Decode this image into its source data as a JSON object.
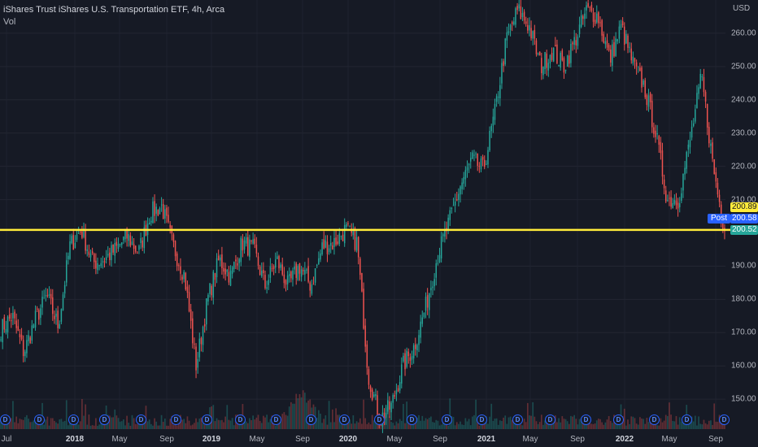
{
  "header": {
    "title": "iShares Trust iShares U.S. Transportation ETF, 4h, Arca",
    "volume_label": "Vol"
  },
  "price_axis": {
    "unit": "USD",
    "labels": [
      "260.00",
      "250.00",
      "240.00",
      "230.00",
      "220.00",
      "210.00",
      "190.00",
      "180.00",
      "170.00",
      "160.00",
      "150.00"
    ]
  },
  "time_axis": {
    "labels": [
      {
        "text": "Jul",
        "major": false
      },
      {
        "text": "2018",
        "major": true
      },
      {
        "text": "May",
        "major": false
      },
      {
        "text": "Sep",
        "major": false
      },
      {
        "text": "2019",
        "major": true
      },
      {
        "text": "May",
        "major": false
      },
      {
        "text": "Sep",
        "major": false
      },
      {
        "text": "2020",
        "major": true
      },
      {
        "text": "May",
        "major": false
      },
      {
        "text": "Sep",
        "major": false
      },
      {
        "text": "2021",
        "major": true
      },
      {
        "text": "May",
        "major": false
      },
      {
        "text": "Sep",
        "major": false
      },
      {
        "text": "2022",
        "major": true
      },
      {
        "text": "May",
        "major": false
      },
      {
        "text": "Sep",
        "major": false
      }
    ]
  },
  "price_tags": {
    "horizontal_line": "200.89",
    "post_label": "Post",
    "post_value": "200.58",
    "last_price": "200.52"
  },
  "dividend_marker_letter": "D",
  "colors": {
    "background": "#161a25",
    "up": "#26a69a",
    "down": "#ef5350",
    "horizontal_line": "#ffeb3b",
    "post": "#2962ff"
  },
  "chart_data": {
    "type": "candlestick",
    "title": "iShares Trust iShares U.S. Transportation ETF, 4h, Arca",
    "ylabel": "USD",
    "ylim": [
      141,
      270
    ],
    "horizontal_line": 200.89,
    "last_price": 200.52,
    "post_price": 200.58,
    "x_ticks": [
      "Jul",
      "2018",
      "May",
      "Sep",
      "2019",
      "May",
      "Sep",
      "2020",
      "May",
      "Sep",
      "2021",
      "May",
      "Sep",
      "2022",
      "May",
      "Sep"
    ],
    "price_path": [
      [
        "2017-07",
        171
      ],
      [
        "2017-08",
        175
      ],
      [
        "2017-09",
        164
      ],
      [
        "2017-10",
        174
      ],
      [
        "2017-11",
        181
      ],
      [
        "2017-12",
        172
      ],
      [
        "2018-01",
        196
      ],
      [
        "2018-02",
        201
      ],
      [
        "2018-03",
        191
      ],
      [
        "2018-04",
        192
      ],
      [
        "2018-05",
        195
      ],
      [
        "2018-06",
        199
      ],
      [
        "2018-07",
        194
      ],
      [
        "2018-08",
        206
      ],
      [
        "2018-09",
        208
      ],
      [
        "2018-10",
        196
      ],
      [
        "2018-11",
        187
      ],
      [
        "2018-12",
        160
      ],
      [
        "2019-01",
        180
      ],
      [
        "2019-02",
        192
      ],
      [
        "2019-03",
        187
      ],
      [
        "2019-04",
        197
      ],
      [
        "2019-05",
        195
      ],
      [
        "2019-06",
        184
      ],
      [
        "2019-07",
        192
      ],
      [
        "2019-08",
        184
      ],
      [
        "2019-09",
        190
      ],
      [
        "2019-10",
        184
      ],
      [
        "2019-11",
        196
      ],
      [
        "2019-12",
        197
      ],
      [
        "2020-01",
        201
      ],
      [
        "2020-02",
        197
      ],
      [
        "2020-03",
        157
      ],
      [
        "2020-04",
        144
      ],
      [
        "2020-05",
        148
      ],
      [
        "2020-06",
        160
      ],
      [
        "2020-07",
        166
      ],
      [
        "2020-08",
        178
      ],
      [
        "2020-09",
        193
      ],
      [
        "2020-10",
        203
      ],
      [
        "2020-11",
        214
      ],
      [
        "2020-12",
        222
      ],
      [
        "2021-01",
        219
      ],
      [
        "2021-02",
        236
      ],
      [
        "2021-03",
        258
      ],
      [
        "2021-04",
        267
      ],
      [
        "2021-05",
        262
      ],
      [
        "2021-06",
        250
      ],
      [
        "2021-07",
        255
      ],
      [
        "2021-08",
        250
      ],
      [
        "2021-09",
        258
      ],
      [
        "2021-10",
        267
      ],
      [
        "2021-11",
        265
      ],
      [
        "2021-12",
        252
      ],
      [
        "2022-01",
        262
      ],
      [
        "2022-02",
        251
      ],
      [
        "2022-03",
        244
      ],
      [
        "2022-04",
        230
      ],
      [
        "2022-05",
        210
      ],
      [
        "2022-06",
        210
      ],
      [
        "2022-07",
        228
      ],
      [
        "2022-08",
        247
      ],
      [
        "2022-09",
        220
      ],
      [
        "2022-09b",
        200.5
      ]
    ],
    "volume": "bars at bottom, mostly low with spikes around 2020-03",
    "dividend_months": [
      "2017-09",
      "2017-12",
      "2018-03",
      "2018-06",
      "2018-09",
      "2018-12",
      "2019-03",
      "2019-06",
      "2019-09",
      "2019-12",
      "2020-03",
      "2020-06",
      "2020-09",
      "2020-12",
      "2021-03",
      "2021-06",
      "2021-09",
      "2021-12",
      "2022-03",
      "2022-06",
      "2022-09"
    ]
  }
}
